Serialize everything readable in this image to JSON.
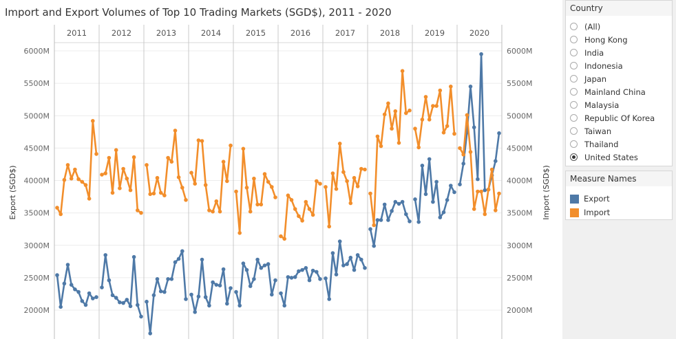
{
  "title": "Import and Export Volumes of Top 10 Trading Markets (SGD$), 2011 - 2020",
  "filter": {
    "title": "Country",
    "options": [
      "(All)",
      "Hong Kong",
      "India",
      "Indonesia",
      "Japan",
      "Mainland China",
      "Malaysia",
      "Republic Of Korea",
      "Taiwan",
      "Thailand",
      "United States"
    ],
    "selected": "United States"
  },
  "legend": {
    "title": "Measure Names",
    "items": [
      {
        "label": "Export",
        "color": "#4e79a7"
      },
      {
        "label": "Import",
        "color": "#f28e2b"
      }
    ]
  },
  "chart_data": {
    "type": "line",
    "facet": "year",
    "years": [
      "2011",
      "2012",
      "2013",
      "2014",
      "2015",
      "2016",
      "2017",
      "2018",
      "2019",
      "2020"
    ],
    "x_per_panel": "month (1-12)",
    "ylabel_left": "Export (SGD$)",
    "ylabel_right": "Import (SGD$)",
    "ylim": [
      1500,
      6200
    ],
    "yticks": [
      2000,
      2500,
      3000,
      3500,
      4000,
      4500,
      5000,
      5500,
      6000
    ],
    "ytick_labels": [
      "2000M",
      "2500M",
      "3000M",
      "3500M",
      "4000M",
      "4500M",
      "5000M",
      "5500M",
      "6000M"
    ],
    "grid": true,
    "series": [
      {
        "name": "Export",
        "color": "#4e79a7",
        "values": {
          "2011": [
            2540,
            2050,
            2410,
            2700,
            2390,
            2320,
            2280,
            2140,
            2080,
            2260,
            2180,
            2200
          ],
          "2012": [
            2350,
            2850,
            2460,
            2230,
            2190,
            2120,
            2110,
            2160,
            2060,
            2820,
            2080,
            1900
          ],
          "2013": [
            2130,
            1640,
            2230,
            2480,
            2290,
            2280,
            2480,
            2480,
            2740,
            2790,
            2910,
            2170
          ],
          "2014": [
            2240,
            1970,
            2210,
            2780,
            2200,
            2070,
            2430,
            2390,
            2380,
            2630,
            2100,
            2340
          ],
          "2015": [
            2280,
            2070,
            2720,
            2620,
            2370,
            2480,
            2780,
            2650,
            2690,
            2710,
            2240,
            2460
          ],
          "2016": [
            2260,
            2070,
            2510,
            2500,
            2510,
            2600,
            2620,
            2650,
            2460,
            2610,
            2590,
            2480
          ],
          "2017": [
            2490,
            2170,
            2880,
            2550,
            3060,
            2690,
            2710,
            2810,
            2620,
            2850,
            2780,
            2650
          ],
          "2018": [
            3250,
            2990,
            3390,
            3390,
            3630,
            3390,
            3530,
            3670,
            3640,
            3670,
            3480,
            3370
          ],
          "2019": [
            3710,
            3360,
            4230,
            3790,
            4330,
            3670,
            3980,
            3430,
            3510,
            3700,
            3920,
            3820
          ],
          "2020": [
            3940,
            4260,
            4740,
            5450,
            4820,
            4020,
            5950,
            3850,
            3860,
            4080,
            4300,
            4730
          ]
        }
      },
      {
        "name": "Import",
        "color": "#f28e2b",
        "values": {
          "2011": [
            3580,
            3480,
            4010,
            4240,
            4030,
            4170,
            4020,
            3980,
            3930,
            3720,
            4920,
            4410
          ],
          "2012": [
            4090,
            4110,
            4350,
            3810,
            4470,
            3880,
            4180,
            4030,
            3850,
            4360,
            3540,
            3500
          ],
          "2013": [
            4240,
            3790,
            3800,
            4040,
            3810,
            3770,
            4350,
            4290,
            4770,
            4050,
            3890,
            3700
          ],
          "2014": [
            4120,
            3950,
            4620,
            4610,
            3930,
            3540,
            3520,
            3680,
            3520,
            4290,
            3990,
            4540
          ],
          "2015": [
            3830,
            3190,
            4490,
            3890,
            3520,
            4030,
            3630,
            3630,
            4100,
            3980,
            3900,
            3740
          ],
          "2016": [
            3140,
            3100,
            3770,
            3700,
            3560,
            3450,
            3380,
            3670,
            3560,
            3470,
            3990,
            3950
          ],
          "2017": [
            3900,
            3290,
            4110,
            3870,
            4570,
            4130,
            3990,
            3650,
            4040,
            3910,
            4180,
            4170
          ],
          "2018": [
            3800,
            3310,
            4680,
            4530,
            5020,
            5190,
            4800,
            5070,
            4580,
            5690,
            5040,
            5080
          ],
          "2019": [
            4800,
            4510,
            4940,
            5290,
            4940,
            5150,
            5150,
            5390,
            4740,
            4840,
            5450,
            4720
          ],
          "2020": [
            4500,
            4400,
            5010,
            4440,
            3560,
            3830,
            3830,
            3480,
            3860,
            4170,
            3540,
            3800
          ]
        }
      }
    ]
  }
}
